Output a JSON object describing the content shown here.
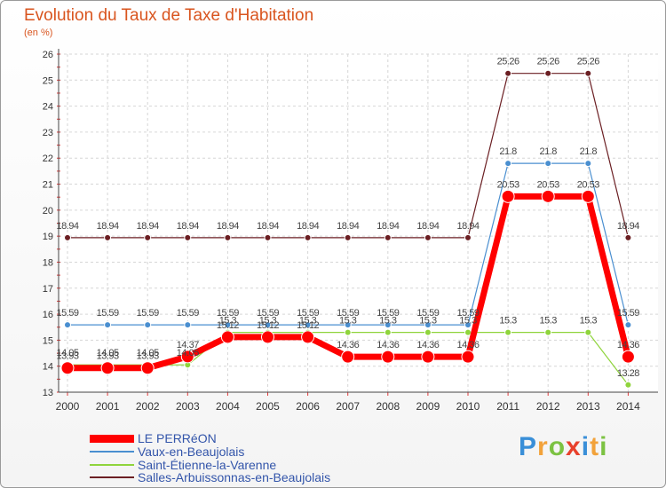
{
  "chart_data": {
    "type": "line",
    "title": "Evolution du Taux de Taxe d'Habitation",
    "subtitle": "(en %)",
    "x": [
      "2000",
      "2001",
      "2002",
      "2003",
      "2004",
      "2005",
      "2006",
      "2007",
      "2008",
      "2009",
      "2010",
      "2011",
      "2012",
      "2013",
      "2014"
    ],
    "ylim": [
      13,
      26
    ],
    "yticks": [
      13,
      14,
      15,
      16,
      17,
      18,
      19,
      20,
      21,
      22,
      23,
      24,
      25,
      26
    ],
    "grid": true,
    "series": [
      {
        "name": "Salles-Arbuissonnas-en-Beaujolais",
        "color": "#6b1f23",
        "values": [
          18.94,
          18.94,
          18.94,
          18.94,
          18.94,
          18.94,
          18.94,
          18.94,
          18.94,
          18.94,
          18.94,
          25.26,
          25.26,
          25.26,
          18.94
        ],
        "labels": [
          "18.94",
          "18.94",
          "18.94",
          "18.94",
          "18.94",
          "18.94",
          "18.94",
          "18.94",
          "18.94",
          "18.94",
          "18.94",
          "25.26",
          "25.26",
          "25.26",
          "18.94"
        ]
      },
      {
        "name": "Vaux-en-Beaujolais",
        "color": "#4a8fd0",
        "values": [
          15.59,
          15.59,
          15.59,
          15.59,
          15.59,
          15.59,
          15.59,
          15.59,
          15.59,
          15.59,
          15.59,
          21.8,
          21.8,
          21.8,
          15.59
        ],
        "labels": [
          "15.59",
          "15.59",
          "15.59",
          "15.59",
          "15.59",
          "15.59",
          "15.59",
          "15.59",
          "15.59",
          "15.59",
          "15.59",
          "21.8",
          "21.8",
          "21.8",
          "15.59"
        ]
      },
      {
        "name": "Saint-Étienne-la-Varenne",
        "color": "#8fd43c",
        "values": [
          14.05,
          14.05,
          14.05,
          14.05,
          15.3,
          15.3,
          15.3,
          15.3,
          15.3,
          15.3,
          15.3,
          15.3,
          15.3,
          15.3,
          13.28
        ],
        "labels": [
          "14.05",
          "14.05",
          "14.05",
          "14.05",
          "15.3",
          "15.3",
          "15.3",
          "15.3",
          "15.3",
          "15.3",
          "15.3",
          "15.3",
          "15.3",
          "15.3",
          "13.28"
        ]
      },
      {
        "name": "LE PERRéON",
        "color": "#ff0000",
        "values": [
          13.93,
          13.93,
          13.93,
          14.37,
          15.12,
          15.12,
          15.12,
          14.36,
          14.36,
          14.36,
          14.36,
          20.53,
          20.53,
          20.53,
          14.36
        ],
        "labels": [
          "13.93",
          "13.93",
          "13.93",
          "14.37",
          "15.12",
          "15.12",
          "15.12",
          "14.36",
          "14.36",
          "14.36",
          "14.36",
          "20.53",
          "20.53",
          "20.53",
          "14.36"
        ]
      }
    ],
    "legend_order": [
      "LE PERRéON",
      "Vaux-en-Beaujolais",
      "Saint-Étienne-la-Varenne",
      "Salles-Arbuissonnas-en-Beaujolais"
    ]
  },
  "legend": {
    "items": [
      {
        "label": "LE PERRéON",
        "color": "#ff0000"
      },
      {
        "label": "Vaux-en-Beaujolais",
        "color": "#4a8fd0"
      },
      {
        "label": "Saint-Étienne-la-Varenne",
        "color": "#8fd43c"
      },
      {
        "label": "Salles-Arbuissonnas-en-Beaujolais",
        "color": "#6b1f23"
      }
    ]
  },
  "brand": {
    "letters": [
      "P",
      "r",
      "o",
      "x",
      "i",
      "t",
      "i"
    ],
    "colors": [
      "#3a8fd8",
      "#f2a23a",
      "#7cc242",
      "#e8412c",
      "#3a8fd8",
      "#f2a23a",
      "#7cc242"
    ]
  }
}
